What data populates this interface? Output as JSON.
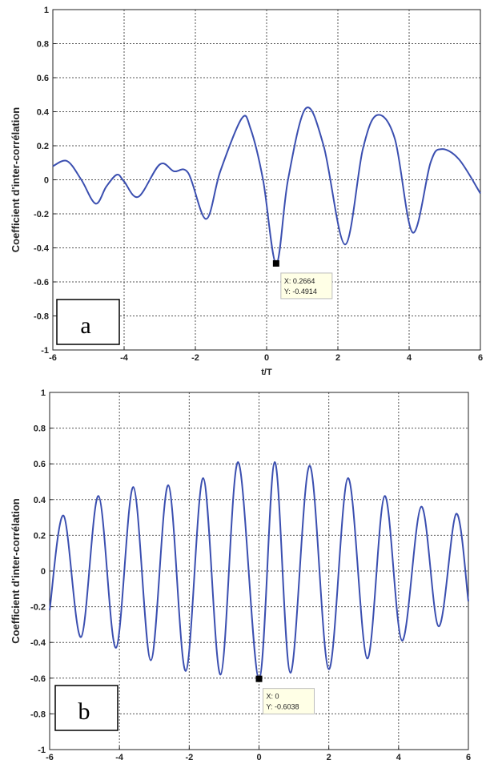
{
  "chart_data": [
    {
      "type": "line",
      "panel_label": "a",
      "xlabel": "t/T",
      "ylabel": "Coefficient d'inter-corrélation",
      "xlim": [
        -6,
        6
      ],
      "ylim": [
        -1,
        1
      ],
      "x_ticks": [
        "-6",
        "-4",
        "-2",
        "0",
        "2",
        "4",
        "6"
      ],
      "y_ticks": [
        "1",
        "0.8",
        "0.6",
        "0.4",
        "0.2",
        "0",
        "-0.2",
        "-0.4",
        "-0.6",
        "-0.8",
        "-1"
      ],
      "grid": true,
      "line_color": "#3b4fb0",
      "series": [
        {
          "x": [
            -6,
            -5.6,
            -5.2,
            -4.8,
            -4.5,
            -4.2,
            -4.0,
            -3.6,
            -3.0,
            -2.6,
            -2.2,
            -1.7,
            -1.3,
            -0.7,
            -0.45,
            -0.1,
            0.27,
            0.6,
            1.1,
            1.6,
            2.2,
            2.7,
            3.1,
            3.6,
            4.1,
            4.6,
            4.9,
            5.4,
            6.0
          ],
          "y": [
            0.08,
            0.11,
            0.0,
            -0.14,
            -0.04,
            0.03,
            -0.01,
            -0.1,
            0.09,
            0.05,
            0.04,
            -0.23,
            0.05,
            0.36,
            0.3,
            0.0,
            -0.4914,
            0.0,
            0.42,
            0.2,
            -0.38,
            0.18,
            0.38,
            0.24,
            -0.31,
            0.1,
            0.18,
            0.12,
            -0.08
          ]
        }
      ],
      "datatip": {
        "x": 0.2664,
        "y": -0.4914,
        "x_text": "X: 0.2664",
        "y_text": "Y: -0.4914"
      }
    },
    {
      "type": "line",
      "panel_label": "b",
      "xlabel": "",
      "ylabel": "Coefficient d'inter-corrélation",
      "xlim": [
        -6,
        6
      ],
      "ylim": [
        -1,
        1
      ],
      "x_ticks": [
        "-6",
        "-4",
        "-2",
        "0",
        "2",
        "4",
        "6"
      ],
      "y_ticks": [
        "1",
        "0.8",
        "0.6",
        "0.4",
        "0.2",
        "0",
        "-0.2",
        "-0.4",
        "-0.6",
        "-0.8",
        "-1"
      ],
      "grid": true,
      "line_color": "#3b4fb0",
      "series": [
        {
          "x": [
            -6,
            -5.6,
            -5.1,
            -4.6,
            -4.1,
            -3.6,
            -3.1,
            -2.6,
            -2.1,
            -1.6,
            -1.1,
            -0.6,
            0.0,
            0.45,
            0.9,
            1.45,
            2.0,
            2.55,
            3.1,
            3.6,
            4.1,
            4.65,
            5.15,
            5.65,
            6.0
          ],
          "y": [
            -0.22,
            0.31,
            -0.37,
            0.42,
            -0.43,
            0.47,
            -0.5,
            0.48,
            -0.56,
            0.52,
            -0.58,
            0.61,
            -0.6038,
            0.61,
            -0.57,
            0.59,
            -0.55,
            0.52,
            -0.49,
            0.42,
            -0.39,
            0.36,
            -0.31,
            0.32,
            -0.17
          ]
        }
      ],
      "datatip": {
        "x": 0,
        "y": -0.6038,
        "x_text": "X: 0",
        "y_text": "Y: -0.6038"
      }
    }
  ]
}
